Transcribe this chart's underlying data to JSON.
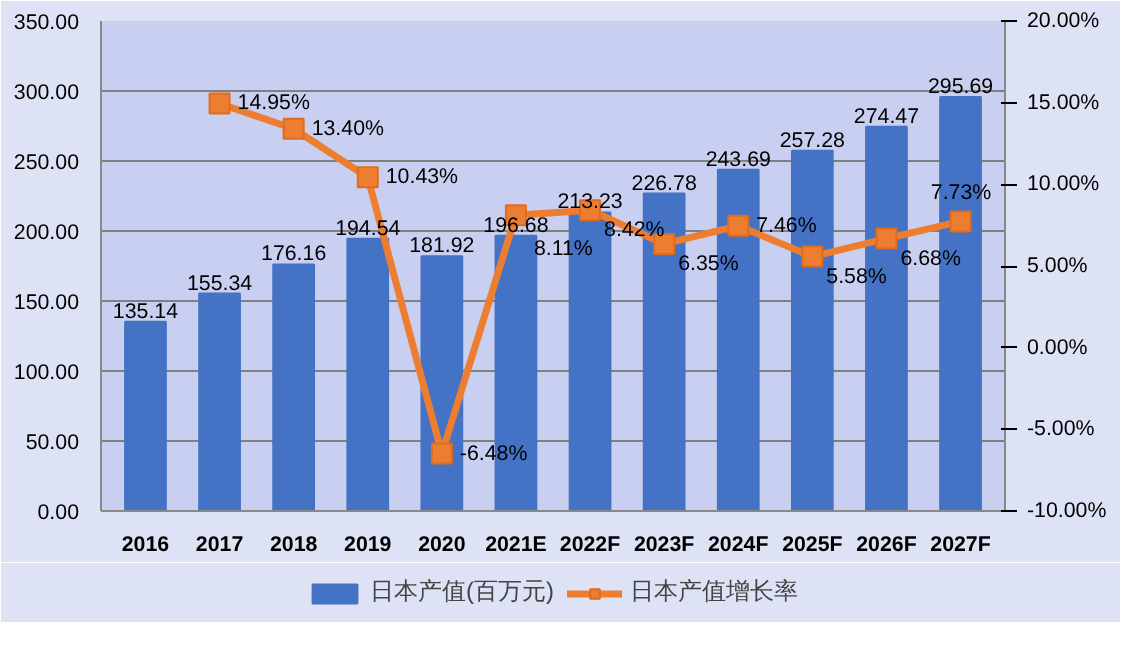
{
  "chart_data": {
    "type": "bar",
    "categories": [
      "2016",
      "2017",
      "2018",
      "2019",
      "2020",
      "2021E",
      "2022F",
      "2023F",
      "2024F",
      "2025F",
      "2026F",
      "2027F"
    ],
    "series": [
      {
        "name": "日本产值(百万元)",
        "color": "#4472c4",
        "values": [
          135.14,
          155.34,
          176.16,
          194.54,
          181.92,
          196.68,
          213.23,
          226.78,
          243.69,
          257.28,
          274.47,
          295.69
        ],
        "data_labels": true
      },
      {
        "name": "日本产值增长率",
        "type": "line",
        "axis": "y2",
        "color": "#ed7d31",
        "marker": "square",
        "values": [
          null,
          14.95,
          13.4,
          10.43,
          -6.48,
          8.11,
          8.42,
          6.35,
          7.46,
          5.58,
          6.68,
          7.73
        ],
        "value_labels": [
          null,
          "14.95%",
          "13.40%",
          "10.43%",
          "-6.48%",
          "8.11%",
          "8.42%",
          "6.35%",
          "7.46%",
          "5.58%",
          "6.68%",
          "7.73%"
        ]
      }
    ],
    "ylim": [
      0,
      350
    ],
    "yticks": [
      {
        "value": 0,
        "label": "0.00"
      },
      {
        "value": 50,
        "label": "50.00"
      },
      {
        "value": 100,
        "label": "100.00"
      },
      {
        "value": 150,
        "label": "150.00"
      },
      {
        "value": 200,
        "label": "200.00"
      },
      {
        "value": 250,
        "label": "250.00"
      },
      {
        "value": 300,
        "label": "300.00"
      },
      {
        "value": 350,
        "label": "350.00"
      }
    ],
    "y2lim": [
      -10,
      20
    ],
    "y2ticks": [
      {
        "value": -10,
        "label": "-10.00%"
      },
      {
        "value": -5,
        "label": "-5.00%"
      },
      {
        "value": 0,
        "label": "0.00%"
      },
      {
        "value": 5,
        "label": "5.00%"
      },
      {
        "value": 10,
        "label": "10.00%"
      },
      {
        "value": 15,
        "label": "15.00%"
      },
      {
        "value": 20,
        "label": "20.00%"
      }
    ],
    "grid": "y",
    "legend": "bottom"
  }
}
